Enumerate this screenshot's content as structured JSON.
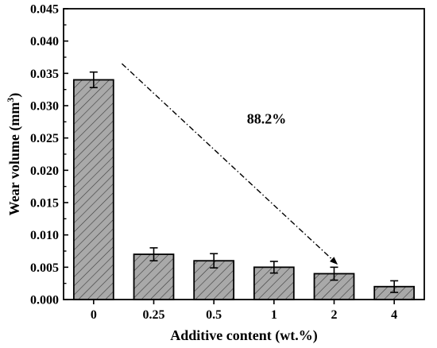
{
  "chart_data": {
    "type": "bar",
    "categories": [
      "0",
      "0.25",
      "0.5",
      "1",
      "2",
      "4"
    ],
    "values": [
      0.034,
      0.007,
      0.006,
      0.005,
      0.004,
      0.002
    ],
    "errors": [
      0.0012,
      0.001,
      0.0011,
      0.0009,
      0.001,
      0.0009
    ],
    "xlabel": "Additive content (wt.%)",
    "ylabel_main": "Wear volume (mm",
    "ylabel_sup": "3",
    "ylabel_close": ")",
    "ylim": [
      0,
      0.045
    ],
    "yticks": [
      "0.000",
      "0.005",
      "0.010",
      "0.015",
      "0.020",
      "0.025",
      "0.030",
      "0.035",
      "0.040",
      "0.045"
    ],
    "bar_color": "#a9a9a9",
    "hatch": "diagonal",
    "annotation": {
      "text": "88.2%",
      "arrow_from": {
        "category": "0",
        "value": 0.0365
      },
      "arrow_to": {
        "category": "2",
        "value": 0.0055
      }
    },
    "grid": false,
    "legend": "none"
  }
}
